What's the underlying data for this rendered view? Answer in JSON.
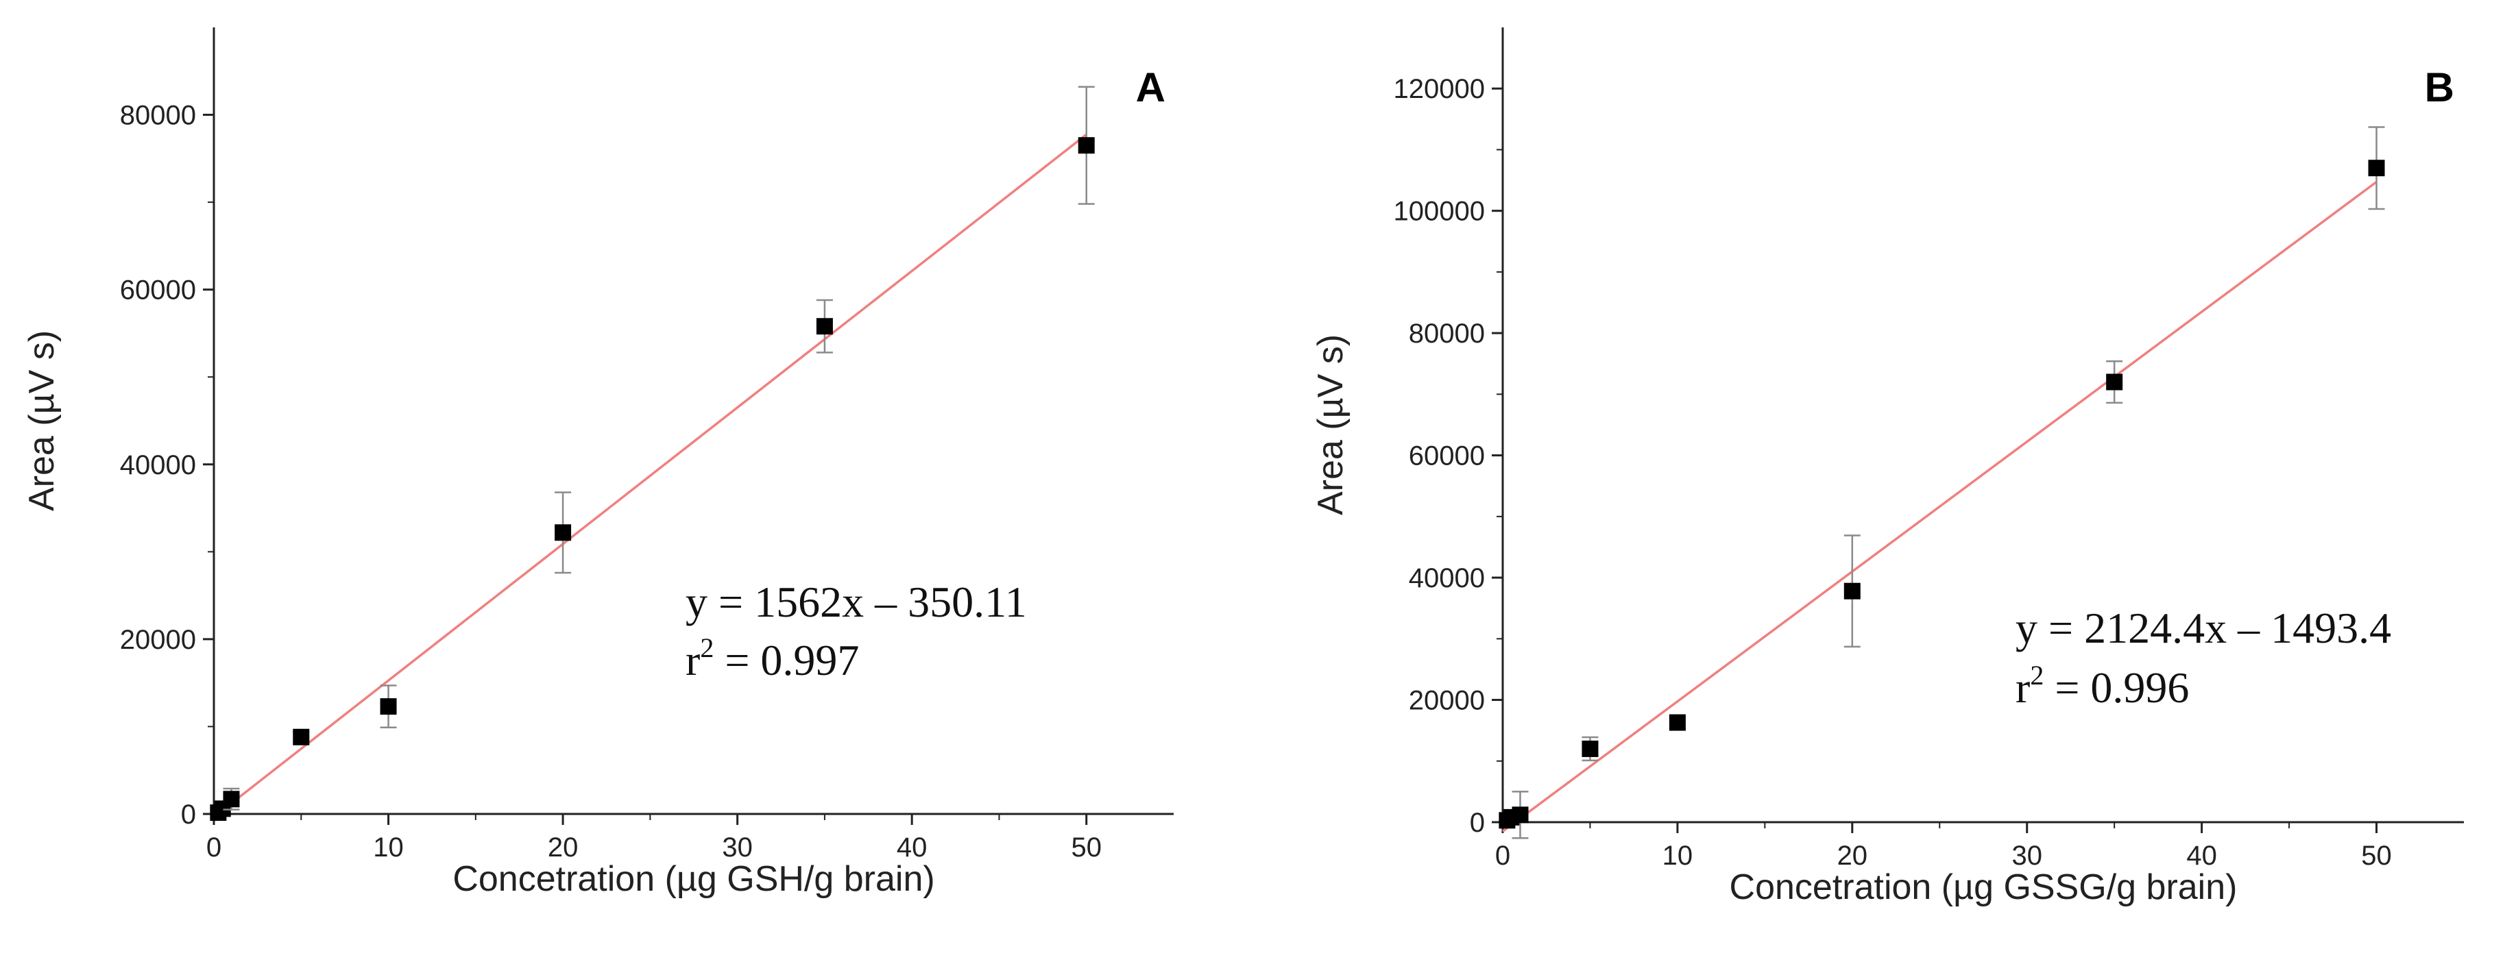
{
  "chart_data": [
    {
      "type": "scatter",
      "panel_label": "A",
      "xlabel": "Concetration (µg GSH/g brain)",
      "ylabel": "Area (µV s)",
      "xlim": [
        0,
        55
      ],
      "ylim": [
        0,
        90000
      ],
      "x_ticks": [
        0,
        10,
        20,
        30,
        40,
        50
      ],
      "y_ticks": [
        0,
        20000,
        40000,
        60000,
        80000
      ],
      "points": [
        {
          "x": 0.25,
          "y": 150,
          "err": 0
        },
        {
          "x": 0.5,
          "y": 600,
          "err": 0
        },
        {
          "x": 1,
          "y": 1700,
          "err": 1200
        },
        {
          "x": 5,
          "y": 8800,
          "err": 600
        },
        {
          "x": 10,
          "y": 12300,
          "err": 2400
        },
        {
          "x": 20,
          "y": 32200,
          "err": 4600
        },
        {
          "x": 35,
          "y": 55800,
          "err": 3000
        },
        {
          "x": 50,
          "y": 76500,
          "err": 6700
        }
      ],
      "fit": {
        "slope": 1562,
        "intercept": -350.11,
        "x_range": [
          0,
          50
        ],
        "color": "#f08080"
      },
      "equation": "y = 1562x – 350.11",
      "r2_label": "r",
      "r2_sup": "2",
      "r2_value": " = 0.997"
    },
    {
      "type": "scatter",
      "panel_label": "B",
      "xlabel": "Concetration (µg GSSG/g brain)",
      "ylabel": "Area (µV s)",
      "xlim": [
        0,
        55
      ],
      "ylim": [
        0,
        130000
      ],
      "x_ticks": [
        0,
        10,
        20,
        30,
        40,
        50
      ],
      "y_ticks": [
        0,
        20000,
        40000,
        60000,
        80000,
        100000,
        120000
      ],
      "points": [
        {
          "x": 0.25,
          "y": 300,
          "err": 0
        },
        {
          "x": 0.5,
          "y": 800,
          "err": 0
        },
        {
          "x": 1,
          "y": 1200,
          "err": 3800
        },
        {
          "x": 5,
          "y": 12000,
          "err": 1900
        },
        {
          "x": 10,
          "y": 16300,
          "err": 900
        },
        {
          "x": 20,
          "y": 37800,
          "err": 9100
        },
        {
          "x": 35,
          "y": 72000,
          "err": 3400
        },
        {
          "x": 50,
          "y": 107000,
          "err": 6700
        }
      ],
      "fit": {
        "slope": 2124.4,
        "intercept": -1493.4,
        "x_range": [
          0,
          50
        ],
        "color": "#f08080"
      },
      "equation": "y = 2124.4x – 1493.4",
      "r2_label": "r",
      "r2_sup": "2",
      "r2_value": " = 0.996"
    }
  ]
}
